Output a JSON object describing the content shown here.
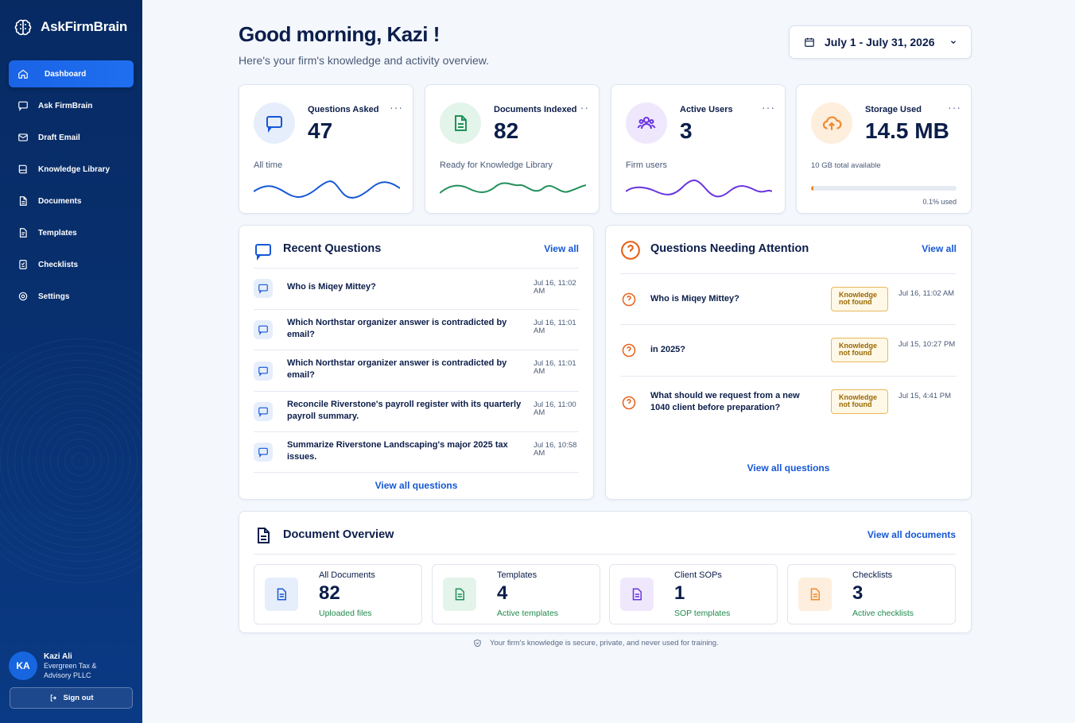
{
  "brand": {
    "name": "AskFirmBrain"
  },
  "nav": [
    {
      "label": "Dashboard",
      "icon": "home-icon"
    },
    {
      "label": "Ask FirmBrain",
      "icon": "chat-icon"
    },
    {
      "label": "Draft Email",
      "icon": "mail-icon"
    },
    {
      "label": "Knowledge Library",
      "icon": "book-icon"
    },
    {
      "label": "Documents",
      "icon": "document-icon"
    },
    {
      "label": "Templates",
      "icon": "template-icon"
    },
    {
      "label": "Checklists",
      "icon": "checklist-icon"
    },
    {
      "label": "Settings",
      "icon": "gear-icon"
    }
  ],
  "user": {
    "initials": "KA",
    "name": "Kazi Ali",
    "org": "Evergreen Tax & Advisory PLLC",
    "signout": "Sign out"
  },
  "header": {
    "greeting": "Good morning, Kazi !",
    "subtitle": "Here's your firm's knowledge and activity overview.",
    "date_range": "July 1 - July 31, 2026"
  },
  "stats": [
    {
      "title": "Questions Asked",
      "value": "47",
      "caption": "All time",
      "color": "#1557d6",
      "icon": "chat-icon"
    },
    {
      "title": "Documents Indexed",
      "value": "82",
      "caption": "Ready for Knowledge Library",
      "color": "#21905a",
      "icon": "document-icon"
    },
    {
      "title": "Active Users",
      "value": "3",
      "caption": "Firm users",
      "color": "#6a34e0",
      "icon": "users-icon"
    },
    {
      "title": "Storage Used",
      "value": "14.5 MB",
      "caption": "10 GB total available",
      "used_label": "0.1% used",
      "used_fraction": 0.001,
      "color": "#f08a2c",
      "icon": "cloud-upload-icon"
    }
  ],
  "recent": {
    "title": "Recent Questions",
    "view_all": "View all",
    "footer": "View all questions",
    "items": [
      {
        "text": "Who is Miqey Mittey?",
        "time": "Jul 16, 11:02 AM"
      },
      {
        "text": "Which Northstar organizer answer is contradicted by email?",
        "time": "Jul 16, 11:01 AM"
      },
      {
        "text": "Which Northstar organizer answer is contradicted by email?",
        "time": "Jul 16, 11:01 AM"
      },
      {
        "text": "Reconcile Riverstone's payroll register with its quarterly payroll summary.",
        "time": "Jul 16, 11:00 AM"
      },
      {
        "text": "Summarize Riverstone Landscaping's major 2025 tax issues.",
        "time": "Jul 16, 10:58 AM"
      }
    ]
  },
  "attention": {
    "title": "Questions Needing Attention",
    "view_all": "View all",
    "footer": "View all questions",
    "items": [
      {
        "text": "Who is Miqey Mittey?",
        "badge": "Knowledge not found",
        "time": "Jul 16, 11:02 AM"
      },
      {
        "text": "in 2025?",
        "badge": "Knowledge not found",
        "time": "Jul 15, 10:27 PM"
      },
      {
        "text": "What should we request from a new 1040 client before preparation?",
        "badge": "Knowledge not found",
        "time": "Jul 15, 4:41 PM"
      }
    ]
  },
  "documents": {
    "title": "Document Overview",
    "view_all": "View all documents",
    "tiles": [
      {
        "title": "All Documents",
        "value": "82",
        "sub": "Uploaded files",
        "color": "#1557d6",
        "bg": "#e6eefc"
      },
      {
        "title": "Templates",
        "value": "4",
        "sub": "Active templates",
        "color": "#21905a",
        "bg": "#e3f4ea"
      },
      {
        "title": "Client SOPs",
        "value": "1",
        "sub": "SOP templates",
        "color": "#6a34e0",
        "bg": "#efe8fd"
      },
      {
        "title": "Checklists",
        "value": "3",
        "sub": "Active checklists",
        "color": "#f08a2c",
        "bg": "#fdeedd"
      }
    ]
  },
  "footer": {
    "note": "Your firm's knowledge is secure, private, and never used for training."
  }
}
